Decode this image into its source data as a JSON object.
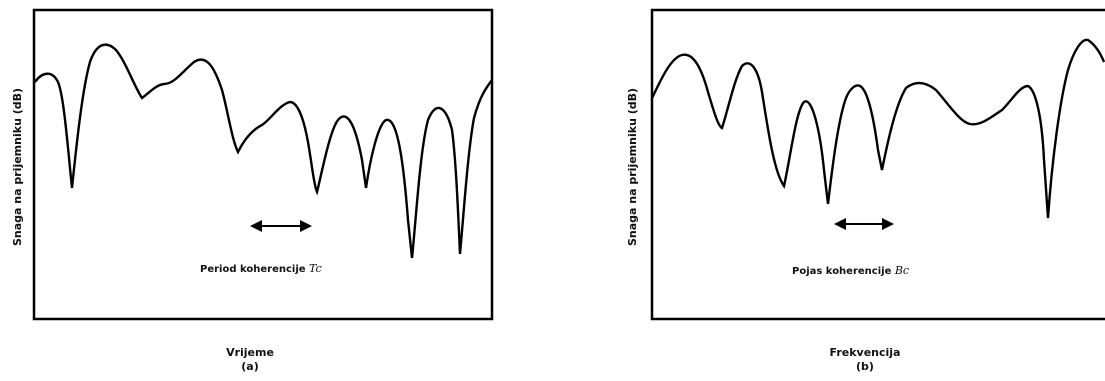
{
  "figures": [
    {
      "id": "a",
      "ylabel": "Snaga na prijemniku (dB)",
      "xlabel": "Vrijeme",
      "sublabel": "(a)",
      "annotation_text": "Period koherencije ",
      "annotation_symbol": "Tc",
      "arrow_direction": "both-horizontal"
    },
    {
      "id": "b",
      "ylabel": "Snaga na prijemniku (dB)",
      "xlabel": "Frekvencija",
      "sublabel": "(b)",
      "annotation_text": "Pojas koherencije ",
      "annotation_symbol": "Bc",
      "arrow_direction": "both-horizontal"
    }
  ],
  "colors": {
    "curve": "#000000",
    "frame": "#000000",
    "background": "#ffffff"
  }
}
